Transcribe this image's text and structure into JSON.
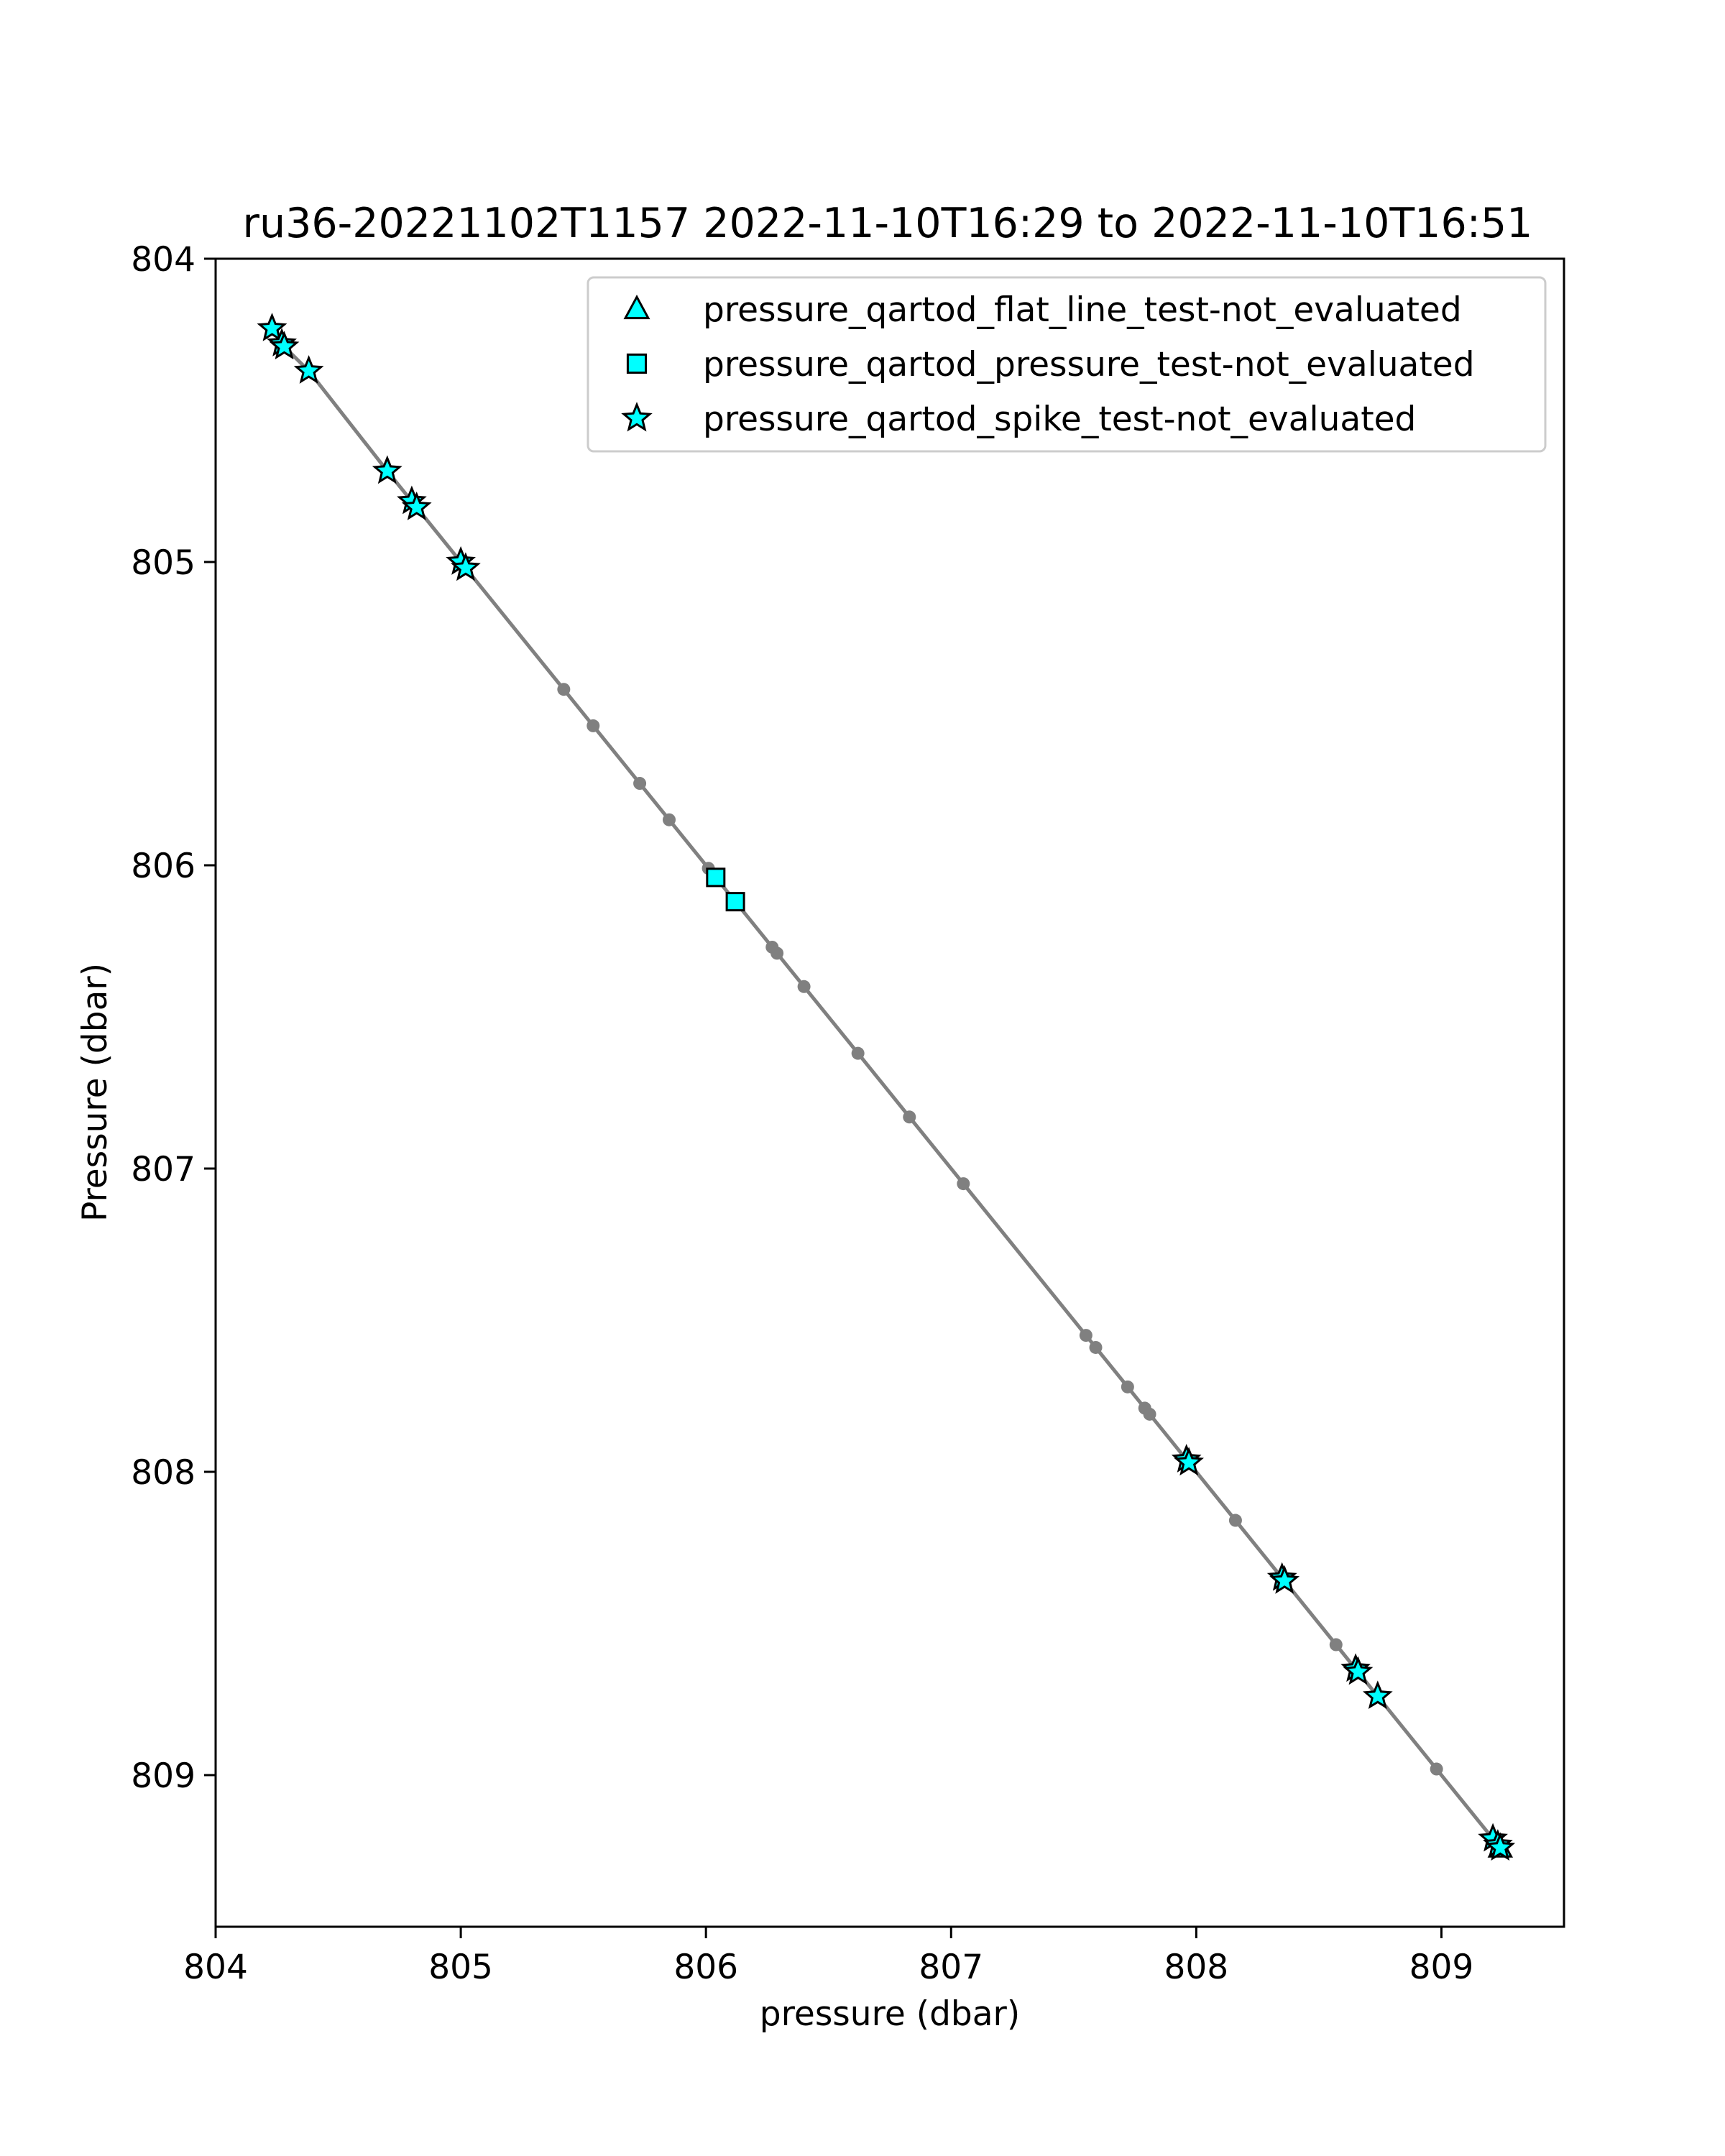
{
  "chart_data": {
    "type": "scatter",
    "title": "ru36-20221102T1157 2022-11-10T16:29 to 2022-11-10T16:51",
    "xlabel": "pressure (dbar)",
    "ylabel": "Pressure (dbar)",
    "xlim": [
      804.0,
      809.5
    ],
    "ylim": [
      809.5,
      804.0
    ],
    "y_inverted": true,
    "grid": false,
    "legend_position": "top-right",
    "x_ticks": [
      804,
      805,
      806,
      807,
      808,
      809
    ],
    "y_ticks": [
      804,
      805,
      806,
      807,
      808,
      809
    ],
    "line_color": "#808080",
    "marker_fill": "#00ffff",
    "marker_edge": "#000000",
    "profile": [
      [
        804.23,
        804.23
      ],
      [
        804.27,
        804.28
      ],
      [
        804.28,
        804.29
      ],
      [
        804.38,
        804.37
      ],
      [
        804.7,
        804.7
      ],
      [
        804.8,
        804.8
      ],
      [
        804.82,
        804.82
      ],
      [
        805.0,
        805.0
      ],
      [
        805.02,
        805.02
      ],
      [
        805.42,
        805.42
      ],
      [
        805.54,
        805.54
      ],
      [
        805.73,
        805.73
      ],
      [
        805.85,
        805.85
      ],
      [
        806.01,
        806.01
      ],
      [
        806.04,
        806.04
      ],
      [
        806.12,
        806.12
      ],
      [
        806.27,
        806.27
      ],
      [
        806.29,
        806.29
      ],
      [
        806.4,
        806.4
      ],
      [
        806.62,
        806.62
      ],
      [
        806.83,
        806.83
      ],
      [
        807.05,
        807.05
      ],
      [
        807.55,
        807.55
      ],
      [
        807.59,
        807.59
      ],
      [
        807.72,
        807.72
      ],
      [
        807.79,
        807.79
      ],
      [
        807.81,
        807.81
      ],
      [
        807.96,
        807.96
      ],
      [
        807.97,
        807.97
      ],
      [
        808.16,
        808.16
      ],
      [
        808.35,
        808.35
      ],
      [
        808.36,
        808.36
      ],
      [
        808.57,
        808.57
      ],
      [
        808.65,
        808.65
      ],
      [
        808.66,
        808.66
      ],
      [
        808.74,
        808.74
      ],
      [
        808.98,
        808.98
      ],
      [
        809.21,
        809.21
      ],
      [
        809.23,
        809.23
      ],
      [
        809.24,
        809.24
      ]
    ],
    "series": [
      {
        "name": "pressure_qartod_flat_line_test-not_evaluated",
        "marker": "triangle",
        "points": [
          [
            809.24,
            809.24
          ]
        ]
      },
      {
        "name": "pressure_qartod_pressure_test-not_evaluated",
        "marker": "square",
        "points": [
          [
            806.04,
            806.04
          ],
          [
            806.12,
            806.12
          ]
        ]
      },
      {
        "name": "pressure_qartod_spike_test-not_evaluated",
        "marker": "star",
        "points": [
          [
            804.23,
            804.23
          ],
          [
            804.27,
            804.28
          ],
          [
            804.28,
            804.29
          ],
          [
            804.38,
            804.37
          ],
          [
            804.7,
            804.7
          ],
          [
            804.8,
            804.8
          ],
          [
            804.82,
            804.82
          ],
          [
            805.0,
            805.0
          ],
          [
            805.02,
            805.02
          ],
          [
            807.96,
            807.96
          ],
          [
            807.97,
            807.97
          ],
          [
            808.35,
            808.35
          ],
          [
            808.36,
            808.36
          ],
          [
            808.65,
            808.65
          ],
          [
            808.66,
            808.66
          ],
          [
            808.74,
            808.74
          ],
          [
            809.21,
            809.21
          ],
          [
            809.23,
            809.23
          ],
          [
            809.24,
            809.24
          ]
        ]
      }
    ]
  }
}
